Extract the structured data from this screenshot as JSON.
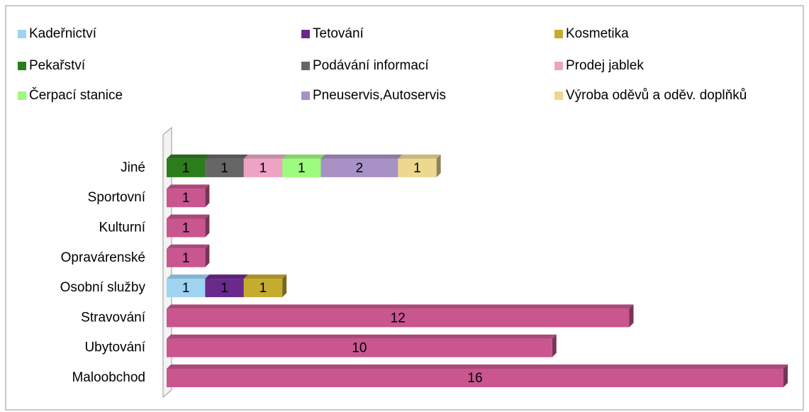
{
  "chart_data": {
    "type": "bar3d_horizontal_stacked",
    "categories": [
      "Maloobchod",
      "Ubytování",
      "Stravování",
      "Osobní služby",
      "Opravárenské",
      "Kulturní",
      "Sportovní",
      "Jiné"
    ],
    "xlim": [
      0,
      16
    ],
    "legend": "top",
    "series": [
      {
        "color": "#c9568e",
        "values": [
          16,
          10,
          12,
          null,
          1,
          1,
          1,
          null
        ]
      },
      {
        "name": "Kadeřnictví",
        "color": "#9fd3f2",
        "values": [
          null,
          null,
          null,
          1,
          null,
          null,
          null,
          null
        ]
      },
      {
        "name": "Tetování",
        "color": "#6a2a8c",
        "values": [
          null,
          null,
          null,
          1,
          null,
          null,
          null,
          null
        ]
      },
      {
        "name": "Kosmetika",
        "color": "#c6ac2e",
        "values": [
          null,
          null,
          null,
          1,
          null,
          null,
          null,
          null
        ]
      },
      {
        "name": "Pekařství",
        "color": "#2b7d1c",
        "values": [
          null,
          null,
          null,
          null,
          null,
          null,
          null,
          1
        ]
      },
      {
        "name": "Podávání informací",
        "color": "#666666",
        "values": [
          null,
          null,
          null,
          null,
          null,
          null,
          null,
          1
        ]
      },
      {
        "name": "Prodej jablek",
        "color": "#eea3c4",
        "values": [
          null,
          null,
          null,
          null,
          null,
          null,
          null,
          1
        ]
      },
      {
        "name": "Čerpací stanice",
        "color": "#9dfb7f",
        "values": [
          null,
          null,
          null,
          null,
          null,
          null,
          null,
          1
        ]
      },
      {
        "name": "Pneuservis,Autoservis",
        "color": "#a791c5",
        "values": [
          null,
          null,
          null,
          null,
          null,
          null,
          null,
          2
        ]
      },
      {
        "name": "Výroba oděvů a oděv. doplňků",
        "color": "#ecd88f",
        "values": [
          null,
          null,
          null,
          null,
          null,
          null,
          null,
          1
        ]
      }
    ]
  }
}
